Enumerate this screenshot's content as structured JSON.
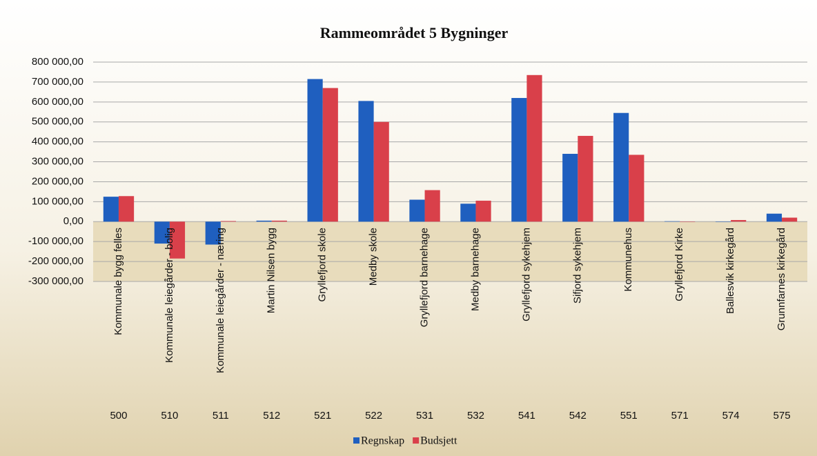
{
  "chart_data": {
    "type": "bar",
    "title": "Rammeområdet  5 Bygninger",
    "categories": [
      "Kommunale bygg  felles",
      "Kommunale leiegårder - bolig",
      "Kommunale leiegårder - næring",
      "Martin Nilsen bygg",
      "Gryllefjord skole",
      "Medby skole",
      "Gryllefjord barnehage",
      "Medby barnehage",
      "Gryllefjord sykehjem",
      "Sifjord sykehjem",
      "Kommunehus",
      "Gryllefjord Kirke",
      "Ballesvik kirkegård",
      "Grunnfarnes kirkegård"
    ],
    "codes": [
      "500",
      "510",
      "511",
      "512",
      "521",
      "522",
      "531",
      "532",
      "541",
      "542",
      "551",
      "571",
      "574",
      "575"
    ],
    "series": [
      {
        "name": "Regnskap",
        "color": "#1f5fbf",
        "values": [
          125000,
          -110000,
          -115000,
          5000,
          715000,
          605000,
          110000,
          90000,
          620000,
          340000,
          545000,
          2000,
          0,
          40000
        ]
      },
      {
        "name": "Budsjett",
        "color": "#d9404a",
        "values": [
          128000,
          -185000,
          3000,
          5000,
          670000,
          500000,
          158000,
          105000,
          735000,
          430000,
          335000,
          0,
          8000,
          20000
        ]
      }
    ],
    "ylim": [
      -300000,
      800000
    ],
    "yticks": [
      {
        "value": -300000,
        "label": "-300 000,00"
      },
      {
        "value": -200000,
        "label": "-200 000,00"
      },
      {
        "value": -100000,
        "label": "-100 000,00"
      },
      {
        "value": 0,
        "label": "0,00"
      },
      {
        "value": 100000,
        "label": "100 000,00"
      },
      {
        "value": 200000,
        "label": "200 000,00"
      },
      {
        "value": 300000,
        "label": "300 000,00"
      },
      {
        "value": 400000,
        "label": "400 000,00"
      },
      {
        "value": 500000,
        "label": "500 000,00"
      },
      {
        "value": 600000,
        "label": "600 000,00"
      },
      {
        "value": 700000,
        "label": "700 000,00"
      },
      {
        "value": 800000,
        "label": "800 000,00"
      }
    ],
    "grid": true,
    "legend": "bottom"
  }
}
